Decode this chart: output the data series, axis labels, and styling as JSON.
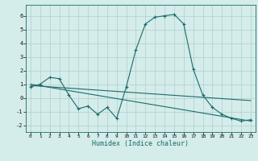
{
  "xlabel": "Humidex (Indice chaleur)",
  "bg_color": "#d4ecea",
  "grid_color": "#b0cece",
  "line_color": "#1a6b6b",
  "xlim": [
    -0.5,
    23.5
  ],
  "ylim": [
    -2.5,
    6.8
  ],
  "xticks": [
    0,
    1,
    2,
    3,
    4,
    5,
    6,
    7,
    8,
    9,
    10,
    11,
    12,
    13,
    14,
    15,
    16,
    17,
    18,
    19,
    20,
    21,
    22,
    23
  ],
  "yticks": [
    -2,
    -1,
    0,
    1,
    2,
    3,
    4,
    5,
    6
  ],
  "main_x": [
    0,
    1,
    2,
    3,
    4,
    5,
    6,
    7,
    8,
    9,
    10,
    11,
    12,
    13,
    14,
    15,
    16,
    17,
    18,
    19,
    20,
    21,
    22,
    23
  ],
  "main_y": [
    0.8,
    1.0,
    1.5,
    1.4,
    0.2,
    -0.8,
    -0.6,
    -1.2,
    -0.7,
    -1.5,
    0.8,
    3.5,
    5.4,
    5.9,
    6.0,
    6.1,
    5.4,
    2.1,
    0.2,
    -0.7,
    -1.2,
    -1.5,
    -1.7,
    -1.6
  ],
  "line1_x": [
    0,
    23
  ],
  "line1_y": [
    0.9,
    -0.2
  ],
  "line2_x": [
    0,
    23
  ],
  "line2_y": [
    1.0,
    -1.7
  ]
}
